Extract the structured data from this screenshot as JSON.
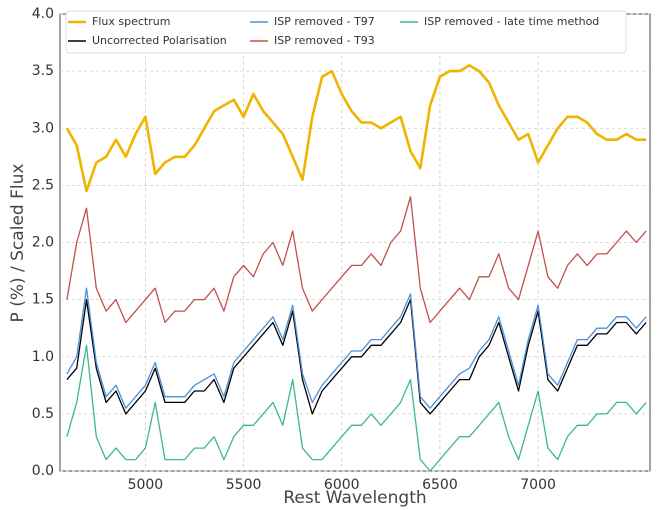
{
  "chart_data": {
    "type": "line",
    "x_label": "Rest Wavelength",
    "y_label": "P (%) / Scaled Flux",
    "xlim": [
      4565,
      7570
    ],
    "ylim": [
      0,
      4
    ],
    "xticks": [
      5000,
      5500,
      6000,
      6500,
      7000
    ],
    "yticks": [
      {
        "value": 0,
        "label": "0.0"
      },
      {
        "value": 0.5,
        "label": "0.5"
      },
      {
        "value": 1,
        "label": "1.0"
      },
      {
        "value": 1.5,
        "label": "1.5"
      },
      {
        "value": 2,
        "label": "2.0"
      },
      {
        "value": 2.5,
        "label": "2.5"
      },
      {
        "value": 3,
        "label": "3.0"
      },
      {
        "value": 3.5,
        "label": "3.5"
      },
      {
        "value": 4,
        "label": "4.0"
      }
    ],
    "grid": true,
    "x": [
      4600,
      4650,
      4700,
      4750,
      4800,
      4850,
      4900,
      4950,
      5000,
      5050,
      5100,
      5150,
      5200,
      5250,
      5300,
      5350,
      5400,
      5450,
      5500,
      5550,
      5600,
      5650,
      5700,
      5750,
      5800,
      5850,
      5900,
      5950,
      6000,
      6050,
      6100,
      6150,
      6200,
      6250,
      6300,
      6350,
      6400,
      6450,
      6500,
      6550,
      6600,
      6650,
      6700,
      6750,
      6800,
      6850,
      6900,
      6950,
      7000,
      7050,
      7100,
      7150,
      7200,
      7250,
      7300,
      7350,
      7400,
      7450,
      7500,
      7550
    ],
    "series": [
      {
        "name": "Flux spectrum",
        "color": "#f0b400",
        "values": [
          3.0,
          2.85,
          2.45,
          2.7,
          2.75,
          2.9,
          2.75,
          2.95,
          3.1,
          2.6,
          2.7,
          2.75,
          2.75,
          2.85,
          3.0,
          3.15,
          3.2,
          3.25,
          3.1,
          3.3,
          3.15,
          3.05,
          2.95,
          2.75,
          2.55,
          3.1,
          3.45,
          3.5,
          3.3,
          3.15,
          3.05,
          3.05,
          3.0,
          3.05,
          3.1,
          2.8,
          2.65,
          3.2,
          3.45,
          3.5,
          3.5,
          3.55,
          3.5,
          3.4,
          3.2,
          3.05,
          2.9,
          2.95,
          2.7,
          2.85,
          3.0,
          3.1,
          3.1,
          3.05,
          2.95,
          2.9,
          2.9,
          2.95,
          2.9,
          2.9
        ]
      },
      {
        "name": "Uncorrected Polarisation",
        "color": "#000000",
        "values": [
          0.8,
          0.9,
          1.5,
          0.9,
          0.6,
          0.7,
          0.5,
          0.6,
          0.7,
          0.9,
          0.6,
          0.6,
          0.6,
          0.7,
          0.7,
          0.8,
          0.6,
          0.9,
          1.0,
          1.1,
          1.2,
          1.3,
          1.1,
          1.4,
          0.8,
          0.5,
          0.7,
          0.8,
          0.9,
          1.0,
          1.0,
          1.1,
          1.1,
          1.2,
          1.3,
          1.5,
          0.6,
          0.5,
          0.6,
          0.7,
          0.8,
          0.8,
          1.0,
          1.1,
          1.3,
          1.0,
          0.7,
          1.1,
          1.4,
          0.8,
          0.7,
          0.9,
          1.1,
          1.1,
          1.2,
          1.2,
          1.3,
          1.3,
          1.2,
          1.3
        ]
      },
      {
        "name": "ISP removed - T97",
        "color": "#4a90d9",
        "values": [
          0.85,
          1.0,
          1.6,
          0.95,
          0.65,
          0.75,
          0.55,
          0.65,
          0.75,
          0.95,
          0.65,
          0.65,
          0.65,
          0.75,
          0.8,
          0.85,
          0.65,
          0.95,
          1.05,
          1.15,
          1.25,
          1.35,
          1.15,
          1.45,
          0.85,
          0.6,
          0.75,
          0.85,
          0.95,
          1.05,
          1.05,
          1.15,
          1.15,
          1.25,
          1.35,
          1.55,
          0.65,
          0.55,
          0.65,
          0.75,
          0.85,
          0.9,
          1.05,
          1.15,
          1.35,
          1.05,
          0.75,
          1.15,
          1.45,
          0.85,
          0.75,
          0.95,
          1.15,
          1.15,
          1.25,
          1.25,
          1.35,
          1.35,
          1.25,
          1.35
        ]
      },
      {
        "name": "ISP removed - T93",
        "color": "#c0504d",
        "values": [
          1.5,
          2.0,
          2.3,
          1.6,
          1.4,
          1.5,
          1.3,
          1.4,
          1.5,
          1.6,
          1.3,
          1.4,
          1.4,
          1.5,
          1.5,
          1.6,
          1.4,
          1.7,
          1.8,
          1.7,
          1.9,
          2.0,
          1.8,
          2.1,
          1.6,
          1.4,
          1.5,
          1.6,
          1.7,
          1.8,
          1.8,
          1.9,
          1.8,
          2.0,
          2.1,
          2.4,
          1.6,
          1.3,
          1.4,
          1.5,
          1.6,
          1.5,
          1.7,
          1.7,
          1.9,
          1.6,
          1.5,
          1.8,
          2.1,
          1.7,
          1.6,
          1.8,
          1.9,
          1.8,
          1.9,
          1.9,
          2.0,
          2.1,
          2.0,
          2.1
        ]
      },
      {
        "name": "ISP removed - late time method",
        "color": "#3cb88f",
        "values": [
          0.3,
          0.6,
          1.1,
          0.3,
          0.1,
          0.2,
          0.1,
          0.1,
          0.2,
          0.6,
          0.1,
          0.1,
          0.1,
          0.2,
          0.2,
          0.3,
          0.1,
          0.3,
          0.4,
          0.4,
          0.5,
          0.6,
          0.4,
          0.8,
          0.2,
          0.1,
          0.1,
          0.2,
          0.3,
          0.4,
          0.4,
          0.5,
          0.4,
          0.5,
          0.6,
          0.8,
          0.1,
          0.0,
          0.1,
          0.2,
          0.3,
          0.3,
          0.4,
          0.5,
          0.6,
          0.3,
          0.1,
          0.4,
          0.7,
          0.2,
          0.1,
          0.3,
          0.4,
          0.4,
          0.5,
          0.5,
          0.6,
          0.6,
          0.5,
          0.6
        ]
      }
    ]
  }
}
